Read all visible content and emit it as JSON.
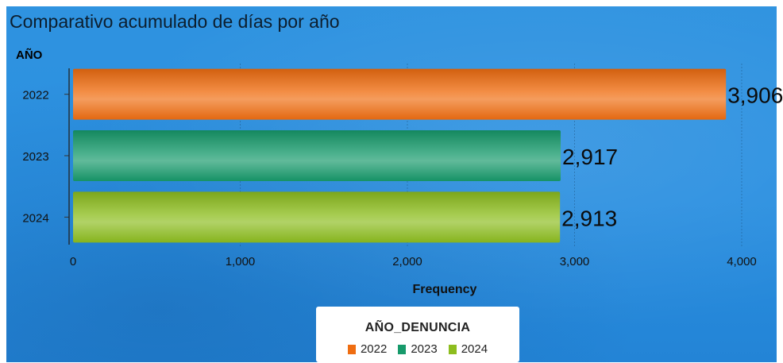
{
  "chart_data": {
    "type": "bar",
    "orientation": "horizontal",
    "title": "Comparativo acumulado de días por año",
    "ylabel": "AÑO",
    "xlabel": "Frequency",
    "categories": [
      "2022",
      "2023",
      "2024"
    ],
    "values": [
      3906,
      2917,
      2913
    ],
    "value_labels": [
      "3,906",
      "2,917",
      "2,913"
    ],
    "xlim": [
      0,
      4200
    ],
    "xticks": [
      0,
      1000,
      2000,
      3000,
      4000
    ],
    "xtick_labels": [
      "0",
      "1,000",
      "2,000",
      "3,000",
      "4,000"
    ],
    "grid": "vertical",
    "colors": [
      "#ef6d11",
      "#179a6b",
      "#8dbd1f"
    ],
    "legend": {
      "title": "AÑO_DENUNCIA",
      "placement": "bottom",
      "items": [
        "2022",
        "2023",
        "2024"
      ]
    }
  }
}
